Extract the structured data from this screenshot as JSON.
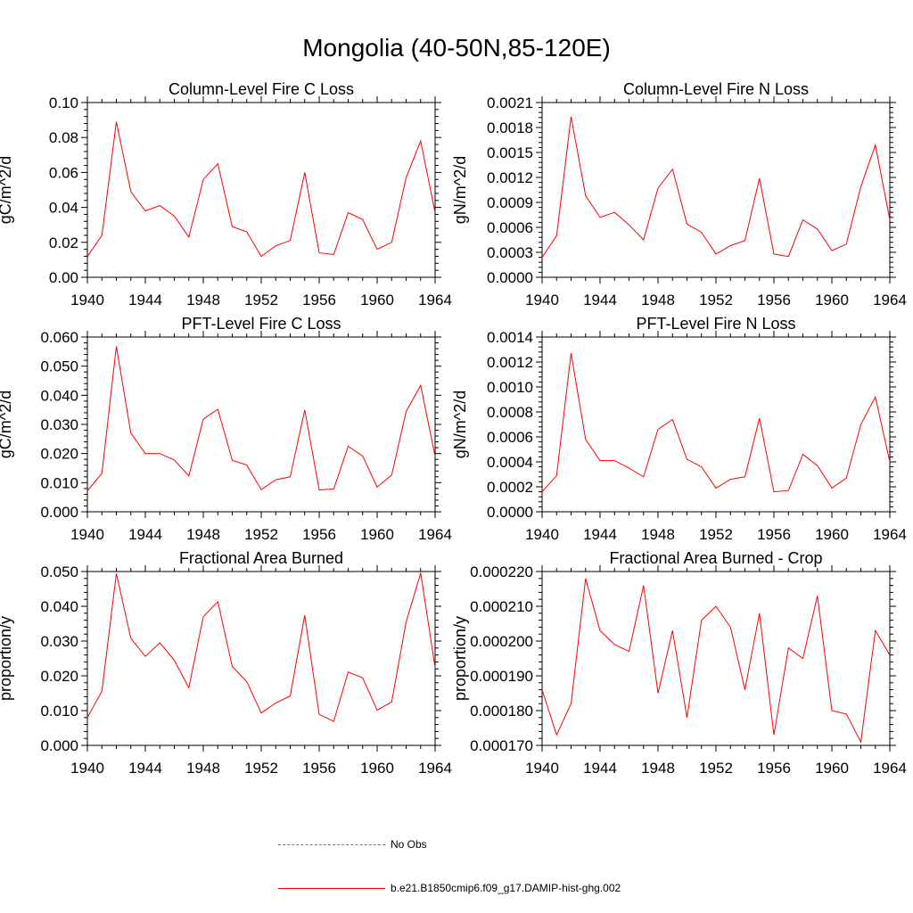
{
  "figure": {
    "title": "Mongolia (40-50N,85-120E)"
  },
  "legend": [
    {
      "label": "No Obs",
      "color": "#6b6bd6",
      "style": "dashed"
    },
    {
      "label": "b.e21.B1850cmip6.f09_g17.DAMIP-hist-ghg.002",
      "color": "#ff0000",
      "style": "solid"
    }
  ],
  "chart_data": [
    {
      "type": "line",
      "title": "Column-Level Fire C Loss",
      "ylabel": "gC/m^2/d",
      "xlim": [
        1940,
        1964
      ],
      "ylim": [
        0,
        0.1
      ],
      "x_ticks": [
        "1940",
        "1944",
        "1948",
        "1952",
        "1956",
        "1960",
        "1964"
      ],
      "y_ticks": [
        "0.00",
        "0.02",
        "0.04",
        "0.06",
        "0.08",
        "0.10"
      ],
      "y_tick_values": [
        0,
        0.02,
        0.04,
        0.06,
        0.08,
        0.1
      ],
      "x": [
        1940,
        1941,
        1942,
        1943,
        1944,
        1945,
        1946,
        1947,
        1948,
        1949,
        1950,
        1951,
        1952,
        1953,
        1954,
        1955,
        1956,
        1957,
        1958,
        1959,
        1960,
        1961,
        1962,
        1963,
        1964
      ],
      "series": [
        {
          "values": [
            0.012,
            0.024,
            0.089,
            0.049,
            0.038,
            0.041,
            0.035,
            0.023,
            0.056,
            0.065,
            0.029,
            0.026,
            0.012,
            0.018,
            0.021,
            0.06,
            0.014,
            0.013,
            0.037,
            0.033,
            0.016,
            0.02,
            0.057,
            0.078,
            0.037
          ]
        }
      ]
    },
    {
      "type": "line",
      "title": "Column-Level Fire N Loss",
      "ylabel": "gN/m^2/d",
      "xlim": [
        1940,
        1964
      ],
      "ylim": [
        0,
        0.0021
      ],
      "x_ticks": [
        "1940",
        "1944",
        "1948",
        "1952",
        "1956",
        "1960",
        "1964"
      ],
      "y_ticks": [
        "0.0000",
        "0.0003",
        "0.0006",
        "0.0009",
        "0.0012",
        "0.0015",
        "0.0018",
        "0.0021"
      ],
      "y_tick_values": [
        0,
        0.0003,
        0.0006,
        0.0009,
        0.0012,
        0.0015,
        0.0018,
        0.0021
      ],
      "x": [
        1940,
        1941,
        1942,
        1943,
        1944,
        1945,
        1946,
        1947,
        1948,
        1949,
        1950,
        1951,
        1952,
        1953,
        1954,
        1955,
        1956,
        1957,
        1958,
        1959,
        1960,
        1961,
        1962,
        1963,
        1964
      ],
      "series": [
        {
          "values": [
            0.00024,
            0.0005,
            0.00193,
            0.00098,
            0.00072,
            0.00078,
            0.00063,
            0.00045,
            0.00107,
            0.0013,
            0.00064,
            0.00054,
            0.00028,
            0.00038,
            0.00044,
            0.00119,
            0.00028,
            0.00025,
            0.00069,
            0.00058,
            0.00032,
            0.0004,
            0.00109,
            0.00159,
            0.00069
          ]
        }
      ]
    },
    {
      "type": "line",
      "title": "PFT-Level Fire C Loss",
      "ylabel": "gC/m^2/d",
      "xlim": [
        1940,
        1964
      ],
      "ylim": [
        0,
        0.06
      ],
      "x_ticks": [
        "1940",
        "1944",
        "1948",
        "1952",
        "1956",
        "1960",
        "1964"
      ],
      "y_ticks": [
        "0.000",
        "0.010",
        "0.020",
        "0.030",
        "0.040",
        "0.050",
        "0.060"
      ],
      "y_tick_values": [
        0,
        0.01,
        0.02,
        0.03,
        0.04,
        0.05,
        0.06
      ],
      "x": [
        1940,
        1941,
        1942,
        1943,
        1944,
        1945,
        1946,
        1947,
        1948,
        1949,
        1950,
        1951,
        1952,
        1953,
        1954,
        1955,
        1956,
        1957,
        1958,
        1959,
        1960,
        1961,
        1962,
        1963,
        1964
      ],
      "series": [
        {
          "values": [
            0.0072,
            0.0132,
            0.0568,
            0.027,
            0.02,
            0.02,
            0.0178,
            0.0123,
            0.0318,
            0.0352,
            0.0177,
            0.016,
            0.0076,
            0.011,
            0.012,
            0.035,
            0.0075,
            0.0078,
            0.0225,
            0.0191,
            0.0085,
            0.0126,
            0.0344,
            0.0434,
            0.019
          ]
        }
      ]
    },
    {
      "type": "line",
      "title": "PFT-Level Fire N Loss",
      "ylabel": "gN/m^2/d",
      "xlim": [
        1940,
        1964
      ],
      "ylim": [
        0,
        0.0014
      ],
      "x_ticks": [
        "1940",
        "1944",
        "1948",
        "1952",
        "1956",
        "1960",
        "1964"
      ],
      "y_ticks": [
        "0.0000",
        "0.0002",
        "0.0004",
        "0.0006",
        "0.0008",
        "0.0010",
        "0.0012",
        "0.0014"
      ],
      "y_tick_values": [
        0,
        0.0002,
        0.0004,
        0.0006,
        0.0008,
        0.001,
        0.0012,
        0.0014
      ],
      "x": [
        1940,
        1941,
        1942,
        1943,
        1944,
        1945,
        1946,
        1947,
        1948,
        1949,
        1950,
        1951,
        1952,
        1953,
        1954,
        1955,
        1956,
        1957,
        1958,
        1959,
        1960,
        1961,
        1962,
        1963,
        1964
      ],
      "series": [
        {
          "values": [
            0.00016,
            0.00029,
            0.00127,
            0.00058,
            0.00041,
            0.00041,
            0.00035,
            0.00028,
            0.00066,
            0.00074,
            0.00042,
            0.00036,
            0.00019,
            0.00026,
            0.00028,
            0.00075,
            0.00016,
            0.00017,
            0.00046,
            0.00037,
            0.00019,
            0.00027,
            0.0007,
            0.00092,
            0.0004
          ]
        }
      ]
    },
    {
      "type": "line",
      "title": "Fractional Area Burned",
      "ylabel": "proportion/y",
      "xlim": [
        1940,
        1964
      ],
      "ylim": [
        0,
        0.05
      ],
      "x_ticks": [
        "1940",
        "1944",
        "1948",
        "1952",
        "1956",
        "1960",
        "1964"
      ],
      "y_ticks": [
        "0.000",
        "0.010",
        "0.020",
        "0.030",
        "0.040",
        "0.050"
      ],
      "y_tick_values": [
        0,
        0.01,
        0.02,
        0.03,
        0.04,
        0.05
      ],
      "x": [
        1940,
        1941,
        1942,
        1943,
        1944,
        1945,
        1946,
        1947,
        1948,
        1949,
        1950,
        1951,
        1952,
        1953,
        1954,
        1955,
        1956,
        1957,
        1958,
        1959,
        1960,
        1961,
        1962,
        1963,
        1964
      ],
      "series": [
        {
          "values": [
            0.008,
            0.0156,
            0.0494,
            0.0308,
            0.0256,
            0.0295,
            0.0245,
            0.0166,
            0.037,
            0.0413,
            0.0227,
            0.0183,
            0.0093,
            0.0122,
            0.0142,
            0.0374,
            0.0089,
            0.0069,
            0.0211,
            0.0194,
            0.0101,
            0.0125,
            0.0355,
            0.0496,
            0.0224
          ]
        }
      ]
    },
    {
      "type": "line",
      "title": "Fractional Area Burned - Crop",
      "ylabel": "proportion/y",
      "xlim": [
        1940,
        1964
      ],
      "ylim": [
        0.00017,
        0.00022
      ],
      "x_ticks": [
        "1940",
        "1944",
        "1948",
        "1952",
        "1956",
        "1960",
        "1964"
      ],
      "y_ticks": [
        "0.000170",
        "0.000180",
        "0.000190",
        "0.000200",
        "0.000210",
        "0.000220"
      ],
      "y_tick_values": [
        0.00017,
        0.00018,
        0.00019,
        0.0002,
        0.00021,
        0.00022
      ],
      "x": [
        1940,
        1941,
        1942,
        1943,
        1944,
        1945,
        1946,
        1947,
        1948,
        1949,
        1950,
        1951,
        1952,
        1953,
        1954,
        1955,
        1956,
        1957,
        1958,
        1959,
        1960,
        1961,
        1962,
        1963,
        1964
      ],
      "series": [
        {
          "values": [
            0.000186,
            0.000173,
            0.000182,
            0.000218,
            0.000203,
            0.000199,
            0.000197,
            0.000216,
            0.000185,
            0.000203,
            0.000178,
            0.000206,
            0.00021,
            0.000204,
            0.000186,
            0.000208,
            0.000173,
            0.000198,
            0.000195,
            0.000213,
            0.00018,
            0.000179,
            0.000171,
            0.000203,
            0.000196
          ]
        }
      ]
    }
  ]
}
